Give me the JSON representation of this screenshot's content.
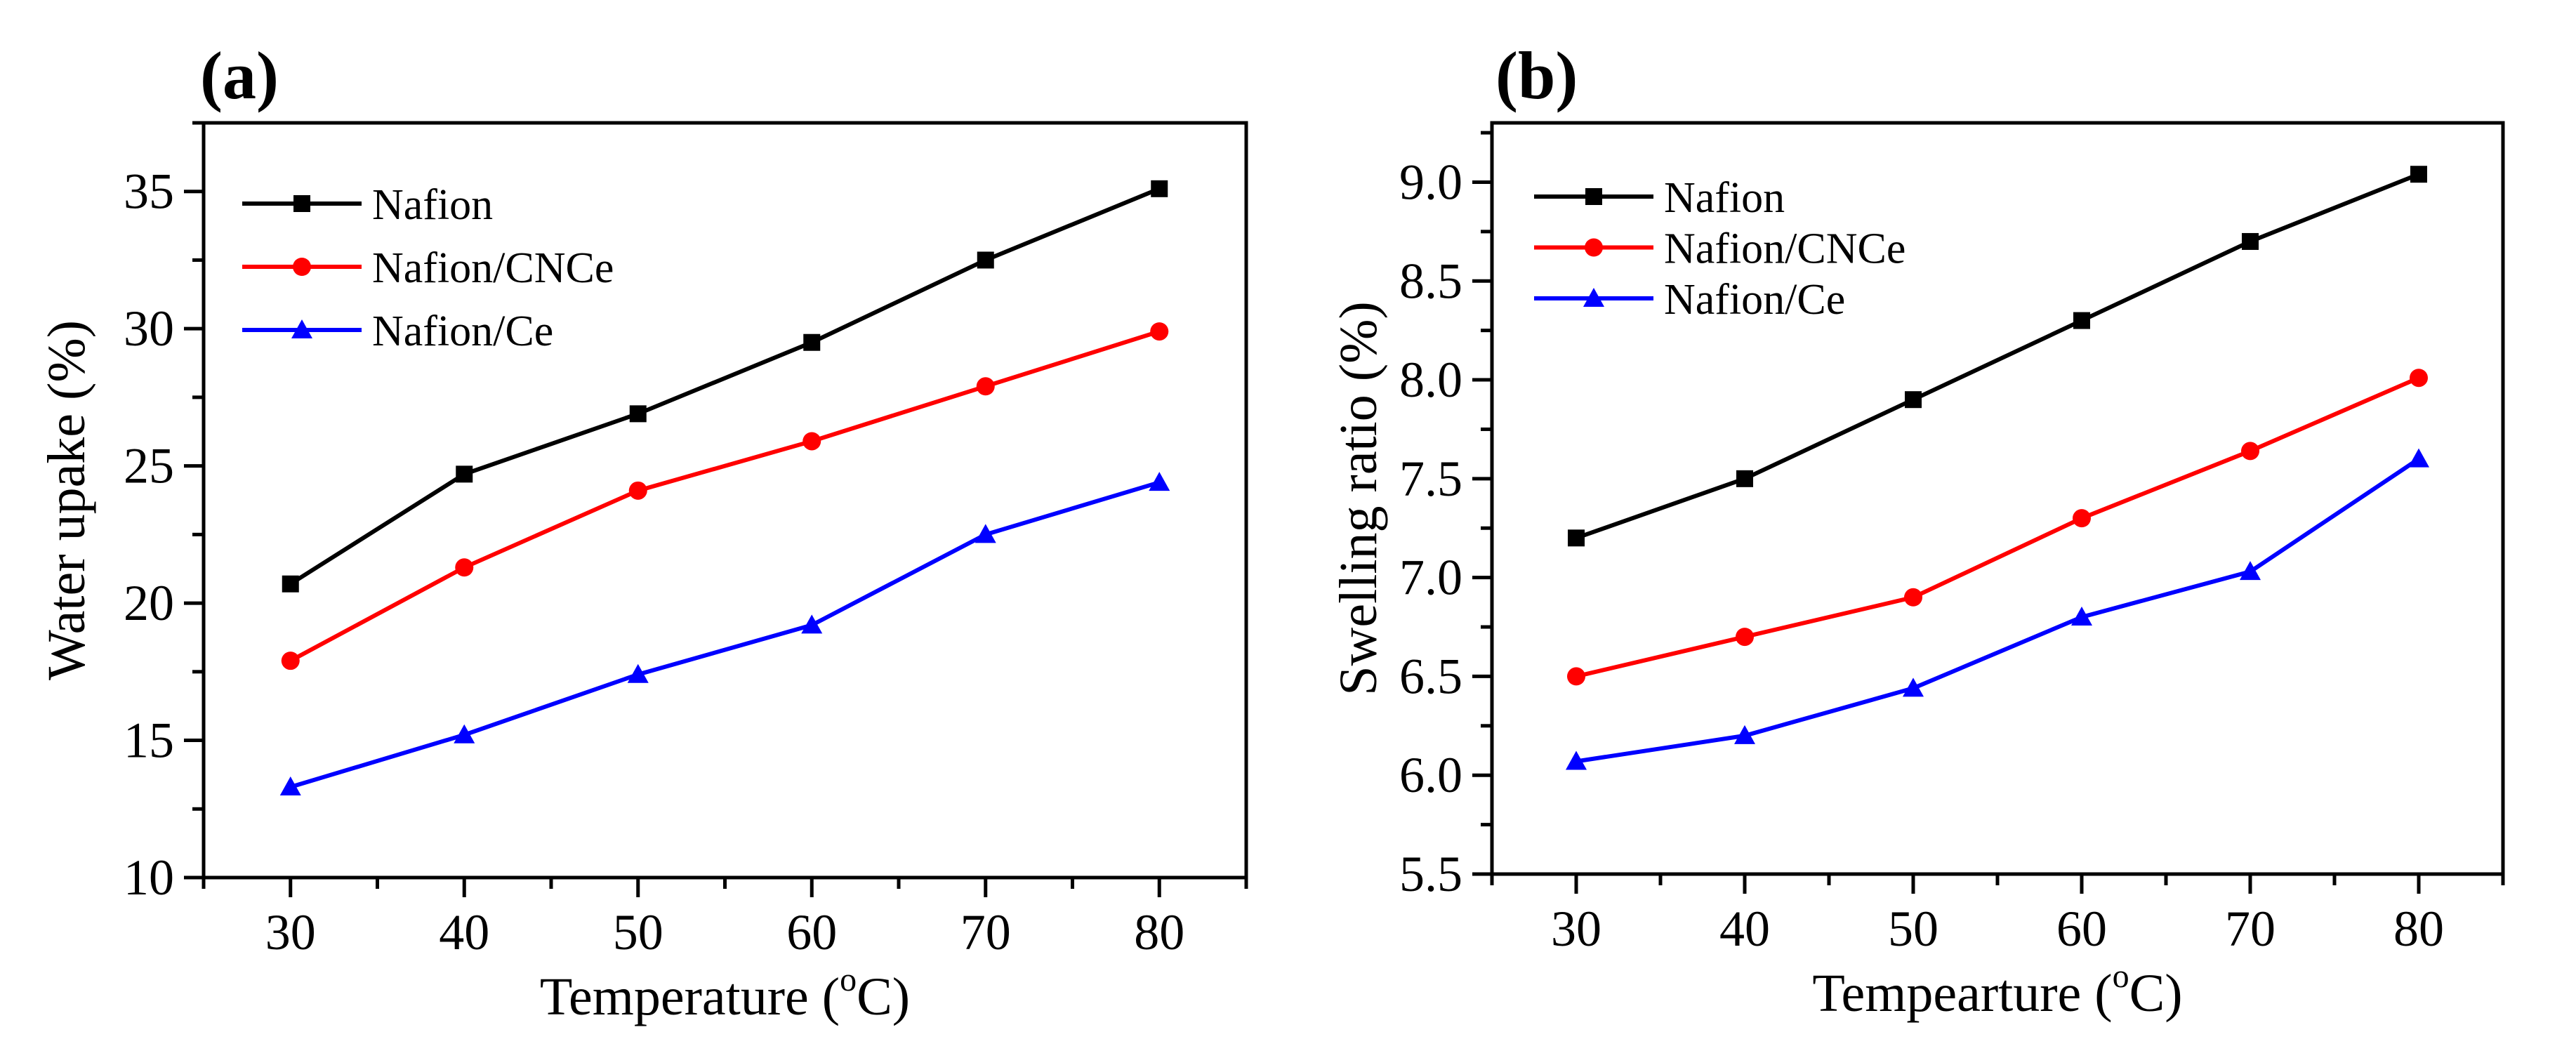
{
  "chart_data": [
    {
      "type": "line",
      "panel_label": "(a)",
      "xlabel_parts": {
        "pre": "Temperature (",
        "sup": "o",
        "post": "C)"
      },
      "ylabel": "Water upake (%)",
      "x": [
        30,
        40,
        50,
        60,
        70,
        80
      ],
      "xlim": [
        25,
        85
      ],
      "ylim": [
        10,
        37.5
      ],
      "xticks": [
        30,
        40,
        50,
        60,
        70,
        80
      ],
      "yticks": [
        10,
        15,
        20,
        25,
        30,
        35
      ],
      "legend_position": "top-left",
      "series": [
        {
          "name": "Nafion",
          "color": "#000000",
          "marker": "square",
          "values": [
            20.7,
            24.7,
            26.9,
            29.5,
            32.5,
            35.1
          ]
        },
        {
          "name": "Nafion/CNCe",
          "color": "#ff0000",
          "marker": "circle",
          "values": [
            17.9,
            21.3,
            24.1,
            25.9,
            27.9,
            29.9
          ]
        },
        {
          "name": "Nafion/Ce",
          "color": "#0000ff",
          "marker": "triangle",
          "values": [
            13.3,
            15.2,
            17.4,
            19.2,
            22.5,
            24.4
          ]
        }
      ]
    },
    {
      "type": "line",
      "panel_label": "(b)",
      "xlabel_parts": {
        "pre": "Tempearture (",
        "sup": "o",
        "post": "C)"
      },
      "ylabel": "Swelling ratio (%)",
      "x": [
        30,
        40,
        50,
        60,
        70,
        80
      ],
      "xlim": [
        25,
        85
      ],
      "ylim": [
        5.5,
        9.3
      ],
      "xticks": [
        30,
        40,
        50,
        60,
        70,
        80
      ],
      "yticks": [
        5.5,
        6.0,
        6.5,
        7.0,
        7.5,
        8.0,
        8.5,
        9.0
      ],
      "ytick_decimals": 1,
      "legend_position": "top-left",
      "series": [
        {
          "name": "Nafion",
          "color": "#000000",
          "marker": "square",
          "values": [
            7.2,
            7.5,
            7.9,
            8.3,
            8.7,
            9.04
          ]
        },
        {
          "name": "Nafion/CNCe",
          "color": "#ff0000",
          "marker": "circle",
          "values": [
            6.5,
            6.7,
            6.9,
            7.3,
            7.64,
            8.01
          ]
        },
        {
          "name": "Nafion/Ce",
          "color": "#0000ff",
          "marker": "triangle",
          "values": [
            6.07,
            6.2,
            6.44,
            6.8,
            7.03,
            7.6
          ]
        }
      ]
    }
  ]
}
